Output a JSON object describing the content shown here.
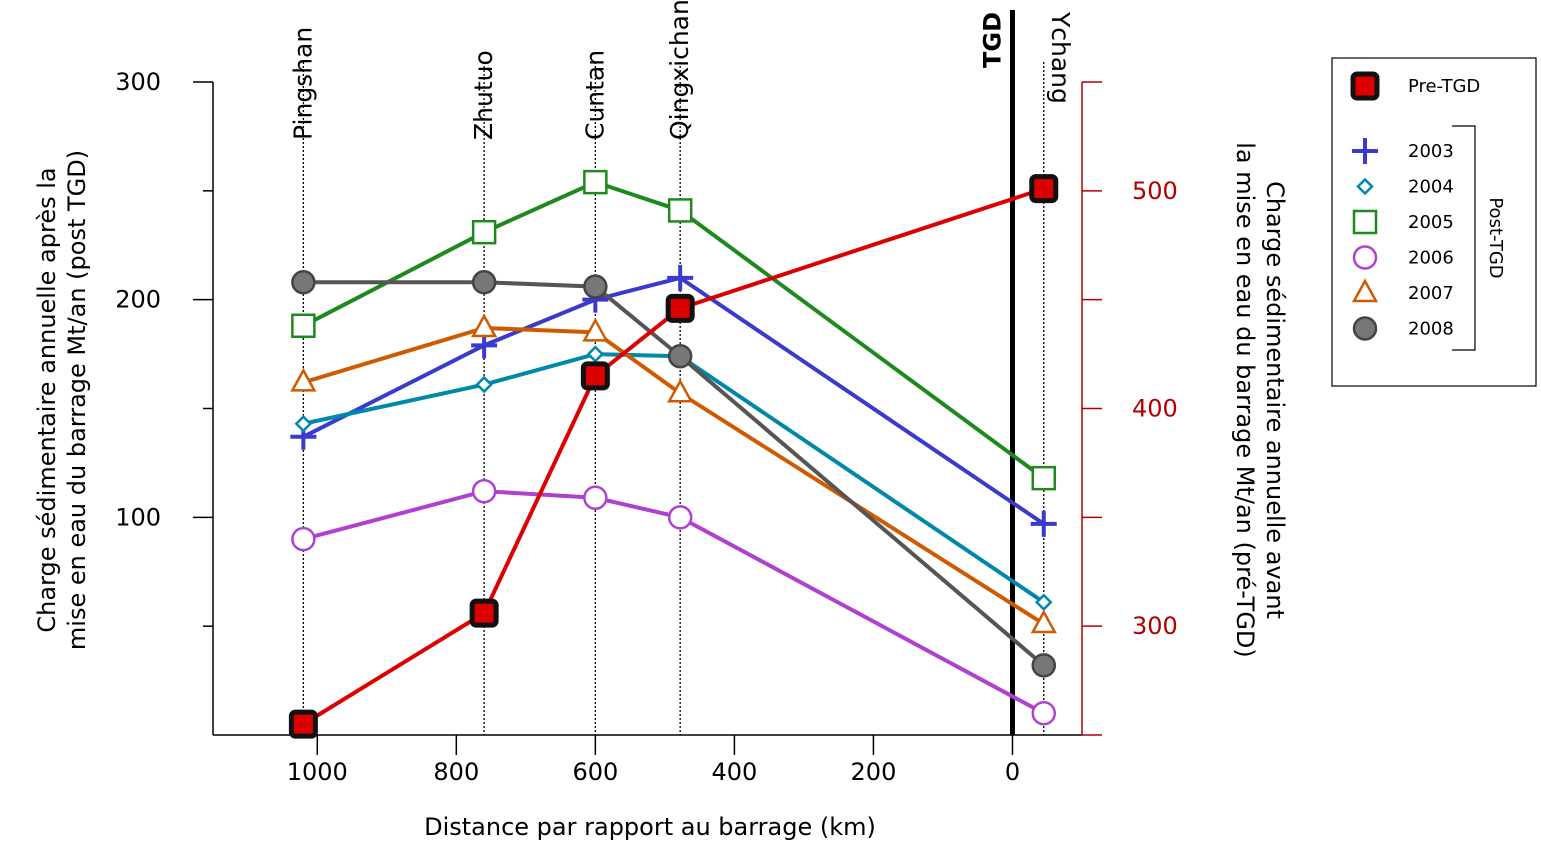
{
  "chart_data": {
    "type": "line",
    "xlabel": "Distance par rapport au barrage (km)",
    "ylabel_left_line1": "Charge sédimentaire annuelle après la",
    "ylabel_left_line2": "mise en eau du barrage  Mt/an (post TGD)",
    "ylabel_right_line1": "Charge sédimentaire annuelle avant",
    "ylabel_right_line2": "la mise en eau du barrage Mt/an (pré-TGD)",
    "xlim": [
      1150,
      -100
    ],
    "ylim_left": [
      0,
      300
    ],
    "ylim_right": [
      250,
      550
    ],
    "x_ticks": [
      1000,
      800,
      600,
      400,
      200,
      0
    ],
    "y_left_ticks": [
      100,
      200,
      300
    ],
    "y_left_minor_ticks": [
      50,
      150,
      250
    ],
    "y_right_ticks": [
      300,
      400,
      500
    ],
    "y_right_minor_ticks": [
      350,
      450
    ],
    "right_axis_color": "#b00000",
    "stations": [
      {
        "name": "Pingshan",
        "x": 1020
      },
      {
        "name": "Zhutuo",
        "x": 760
      },
      {
        "name": "Cuntan",
        "x": 600
      },
      {
        "name": "Qingxichang",
        "x": 478
      },
      {
        "name": "Ychang",
        "x": -45
      }
    ],
    "tgd_label": "TGD",
    "tgd_x": 0,
    "pre_series": {
      "name": "Pre-TGD",
      "axis": "right",
      "color": "#dd0000",
      "x": [
        1020,
        760,
        600,
        478,
        -45
      ],
      "values": [
        255,
        306,
        415,
        446,
        501
      ]
    },
    "series": [
      {
        "name": "2003",
        "marker": "plus",
        "color": "#3a3acc",
        "x": [
          1020,
          760,
          600,
          478,
          -45
        ],
        "values": [
          137,
          179,
          200,
          210,
          97
        ]
      },
      {
        "name": "2004",
        "marker": "diamond",
        "color": "#0088aa",
        "x": [
          1020,
          760,
          600,
          478,
          -45
        ],
        "values": [
          143,
          161,
          175,
          174,
          61
        ]
      },
      {
        "name": "2005",
        "marker": "square",
        "color": "#1e8a1e",
        "x": [
          1020,
          760,
          600,
          478,
          -45
        ],
        "values": [
          188,
          231,
          254,
          241,
          118
        ]
      },
      {
        "name": "2006",
        "marker": "circle",
        "color": "#b040d0",
        "x": [
          1020,
          760,
          600,
          478,
          -45
        ],
        "values": [
          90,
          112,
          109,
          100,
          10
        ]
      },
      {
        "name": "2007",
        "marker": "triangle",
        "color": "#d05a00",
        "x": [
          1020,
          760,
          600,
          478,
          -45
        ],
        "values": [
          162,
          187,
          185,
          157,
          51
        ]
      },
      {
        "name": "2008",
        "marker": "filled-circle",
        "color": "#555555",
        "x": [
          1020,
          760,
          600,
          478,
          -45
        ],
        "values": [
          208,
          208,
          206,
          174,
          32
        ]
      }
    ],
    "legend": {
      "placement": "right",
      "group_label": "Post-TGD"
    }
  }
}
